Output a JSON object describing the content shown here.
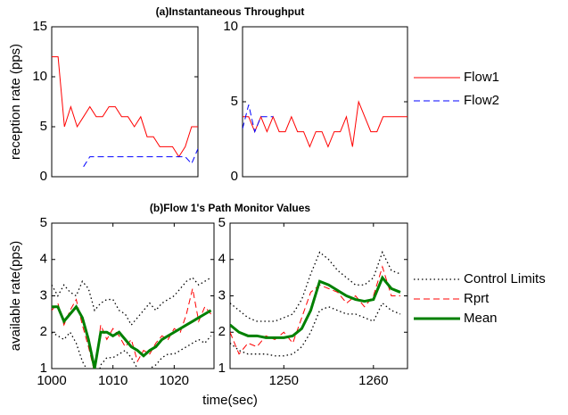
{
  "chart_data": [
    {
      "type": "line",
      "title": "(a)Instantaneous Throughput",
      "ylabel": "reception rate (pps)",
      "xlim": [
        0,
        23
      ],
      "ylim": [
        0,
        15
      ],
      "yticks": [
        0,
        5,
        10,
        15
      ],
      "series": [
        {
          "name": "Flow1",
          "color": "#ff0000",
          "dash": "solid",
          "x": [
            0,
            1,
            2,
            3,
            4,
            5,
            6,
            7,
            8,
            9,
            10,
            11,
            12,
            13,
            14,
            15,
            16,
            17,
            18,
            19,
            20,
            21,
            22,
            23
          ],
          "values": [
            12,
            12,
            5,
            7,
            5,
            6,
            7,
            6,
            6,
            7,
            7,
            6,
            6,
            5,
            6,
            4,
            4,
            3,
            3,
            3,
            2,
            3,
            5,
            5
          ]
        },
        {
          "name": "Flow2",
          "color": "#0000ff",
          "dash": "dashed",
          "x": [
            0,
            1,
            2,
            3,
            4,
            5,
            6,
            7,
            8,
            9,
            10,
            11,
            12,
            13,
            14,
            15,
            16,
            17,
            18,
            19,
            20,
            21,
            22,
            23
          ],
          "values": [
            null,
            null,
            null,
            null,
            null,
            1,
            2,
            2,
            2,
            2,
            2,
            2,
            2,
            2,
            2,
            2,
            2,
            2,
            2,
            2,
            2,
            2,
            1.3,
            2.8
          ]
        }
      ]
    },
    {
      "type": "line",
      "legend": "right",
      "xlim": [
        0,
        27
      ],
      "ylim": [
        0,
        10
      ],
      "yticks": [
        0,
        5,
        10
      ],
      "series": [
        {
          "name": "Flow1",
          "color": "#ff0000",
          "dash": "solid",
          "x": [
            0,
            1,
            2,
            3,
            4,
            5,
            6,
            7,
            8,
            9,
            10,
            11,
            12,
            13,
            14,
            15,
            16,
            17,
            18,
            19,
            20,
            21,
            22,
            23,
            24,
            25,
            26,
            27
          ],
          "values": [
            4,
            4,
            3,
            4,
            3,
            4,
            3,
            3,
            4,
            3,
            3,
            2,
            3,
            3,
            2,
            3,
            3,
            4,
            2,
            5,
            4,
            3,
            3,
            4,
            4,
            4,
            4,
            4
          ]
        },
        {
          "name": "Flow2",
          "color": "#0000ff",
          "dash": "dashed",
          "x": [
            0,
            1,
            2,
            3,
            4,
            5,
            6,
            7,
            8,
            9,
            10,
            11,
            12,
            13,
            14,
            15,
            16,
            17,
            18,
            19,
            20,
            21,
            22,
            23,
            24,
            25,
            26,
            27
          ],
          "values": [
            3.2,
            4.8,
            3,
            4,
            4,
            4,
            null,
            null,
            null,
            null,
            null,
            null,
            null,
            null,
            null,
            null,
            null,
            null,
            null,
            null,
            null,
            null,
            null,
            null,
            null,
            null,
            null,
            null
          ]
        }
      ]
    },
    {
      "type": "line",
      "title": "(b)Flow 1's Path Monitor Values",
      "ylabel": "available rate(pps)",
      "xlabel": "time(sec)",
      "xlim": [
        1000,
        1026.5
      ],
      "xticks": [
        1000,
        1010,
        1020
      ],
      "ylim": [
        1,
        5
      ],
      "yticks": [
        1,
        2,
        3,
        4,
        5
      ],
      "series": [
        {
          "name": "Control Limits",
          "color": "#000000",
          "dash": "dotted",
          "width": 1.3,
          "x": [
            1000,
            1001,
            1002,
            1003,
            1004,
            1005,
            1006,
            1007,
            1008,
            1009,
            1010,
            1011,
            1012,
            1013,
            1014,
            1015,
            1016,
            1017,
            1018,
            1019,
            1020,
            1021,
            1022,
            1023,
            1024,
            1025,
            1026
          ],
          "values": [
            3.3,
            3.0,
            3.3,
            3.1,
            3.0,
            3.4,
            3.2,
            2.6,
            2.8,
            2.9,
            2.9,
            2.6,
            2.5,
            2.2,
            2.4,
            2.6,
            2.8,
            2.6,
            2.8,
            2.9,
            3.0,
            3.2,
            3.4,
            3.5,
            3.3,
            3.4,
            3.5
          ]
        },
        {
          "name": "Control Limits",
          "color": "#000000",
          "dash": "dotted",
          "width": 1.3,
          "x": [
            1000,
            1001,
            1002,
            1003,
            1004,
            1005,
            1006,
            1007,
            1008,
            1009,
            1010,
            1011,
            1012,
            1013,
            1014,
            1015,
            1016,
            1017,
            1018,
            1019,
            1020,
            1021,
            1022,
            1023,
            1024,
            1025,
            1026
          ],
          "values": [
            2.0,
            1.9,
            1.8,
            2.0,
            1.7,
            1.2,
            0.9,
            0.3,
            1.1,
            1.3,
            1.3,
            1.4,
            1.5,
            1.3,
            1.0,
            0.9,
            1.0,
            1.1,
            1.3,
            1.4,
            1.4,
            1.5,
            1.6,
            1.7,
            1.8,
            1.7,
            1.9
          ]
        },
        {
          "name": "Rprt",
          "color": "#ff0000",
          "dash": "dashed",
          "width": 1,
          "x": [
            1000,
            1001,
            1002,
            1003,
            1004,
            1005,
            1006,
            1007,
            1008,
            1009,
            1010,
            1011,
            1012,
            1013,
            1014,
            1015,
            1016,
            1017,
            1018,
            1019,
            1020,
            1021,
            1022,
            1023,
            1024,
            1025,
            1026
          ],
          "values": [
            2.6,
            2.8,
            2.2,
            2.6,
            2.9,
            2.2,
            1.6,
            0.9,
            2.2,
            1.8,
            2.1,
            1.9,
            1.6,
            1.8,
            1.2,
            1.5,
            1.4,
            1.7,
            1.9,
            1.8,
            2.1,
            2.0,
            2.5,
            3.2,
            2.3,
            2.7,
            2.5
          ]
        },
        {
          "name": "Mean",
          "color": "#008000",
          "dash": "solid",
          "width": 3,
          "x": [
            1000,
            1001,
            1002,
            1003,
            1004,
            1005,
            1006,
            1007,
            1008,
            1009,
            1010,
            1011,
            1012,
            1013,
            1014,
            1015,
            1016,
            1017,
            1018,
            1019,
            1020,
            1021,
            1022,
            1023,
            1024,
            1025,
            1026
          ],
          "values": [
            2.7,
            2.7,
            2.3,
            2.5,
            2.7,
            2.4,
            1.8,
            1.0,
            2.0,
            2.0,
            1.9,
            2.0,
            1.8,
            1.6,
            1.5,
            1.35,
            1.5,
            1.6,
            1.8,
            1.9,
            2.0,
            2.1,
            2.2,
            2.3,
            2.4,
            2.5,
            2.6
          ]
        }
      ]
    },
    {
      "type": "line",
      "legend": "right",
      "xlim": [
        1244,
        1263.8
      ],
      "xticks": [
        1250,
        1260
      ],
      "ylim": [
        1,
        5
      ],
      "yticks": [
        1,
        2,
        3,
        4,
        5
      ],
      "series": [
        {
          "name": "Control Limits",
          "color": "#000000",
          "dash": "dotted",
          "width": 1.3,
          "x": [
            1244,
            1245,
            1246,
            1247,
            1248,
            1249,
            1250,
            1251,
            1252,
            1253,
            1254,
            1255,
            1256,
            1257,
            1258,
            1259,
            1260,
            1261,
            1262,
            1263
          ],
          "values": [
            2.8,
            2.6,
            2.4,
            2.3,
            2.3,
            2.3,
            2.4,
            2.5,
            2.9,
            3.6,
            4.2,
            4.0,
            3.7,
            3.5,
            3.3,
            3.3,
            3.5,
            4.2,
            3.7,
            3.6
          ]
        },
        {
          "name": "Control Limits",
          "color": "#000000",
          "dash": "dotted",
          "width": 1.3,
          "x": [
            1244,
            1245,
            1246,
            1247,
            1248,
            1249,
            1250,
            1251,
            1252,
            1253,
            1254,
            1255,
            1256,
            1257,
            1258,
            1259,
            1260,
            1261,
            1262,
            1263
          ],
          "values": [
            1.7,
            1.5,
            1.4,
            1.4,
            1.4,
            1.35,
            1.35,
            1.4,
            1.6,
            2.0,
            2.6,
            2.7,
            2.6,
            2.5,
            2.5,
            2.4,
            2.3,
            2.8,
            2.6,
            2.5
          ]
        },
        {
          "name": "Rprt",
          "color": "#ff0000",
          "dash": "dashed",
          "width": 1,
          "x": [
            1244,
            1245,
            1246,
            1247,
            1248,
            1249,
            1250,
            1251,
            1252,
            1253,
            1254,
            1255,
            1256,
            1257,
            1258,
            1259,
            1260,
            1261,
            1262,
            1263
          ],
          "values": [
            2.0,
            1.4,
            1.7,
            1.6,
            1.9,
            1.8,
            2.0,
            1.7,
            2.4,
            3.1,
            3.3,
            3.2,
            3.1,
            2.8,
            3.0,
            2.7,
            3.0,
            3.8,
            3.0,
            3.0
          ]
        },
        {
          "name": "Mean",
          "color": "#008000",
          "dash": "solid",
          "width": 3,
          "x": [
            1244,
            1245,
            1246,
            1247,
            1248,
            1249,
            1250,
            1251,
            1252,
            1253,
            1254,
            1255,
            1256,
            1257,
            1258,
            1259,
            1260,
            1261,
            1262,
            1263
          ],
          "values": [
            2.2,
            2.0,
            1.9,
            1.9,
            1.85,
            1.85,
            1.85,
            1.9,
            2.1,
            2.6,
            3.4,
            3.3,
            3.15,
            3.0,
            2.9,
            2.85,
            2.9,
            3.5,
            3.2,
            3.1
          ]
        }
      ]
    }
  ]
}
